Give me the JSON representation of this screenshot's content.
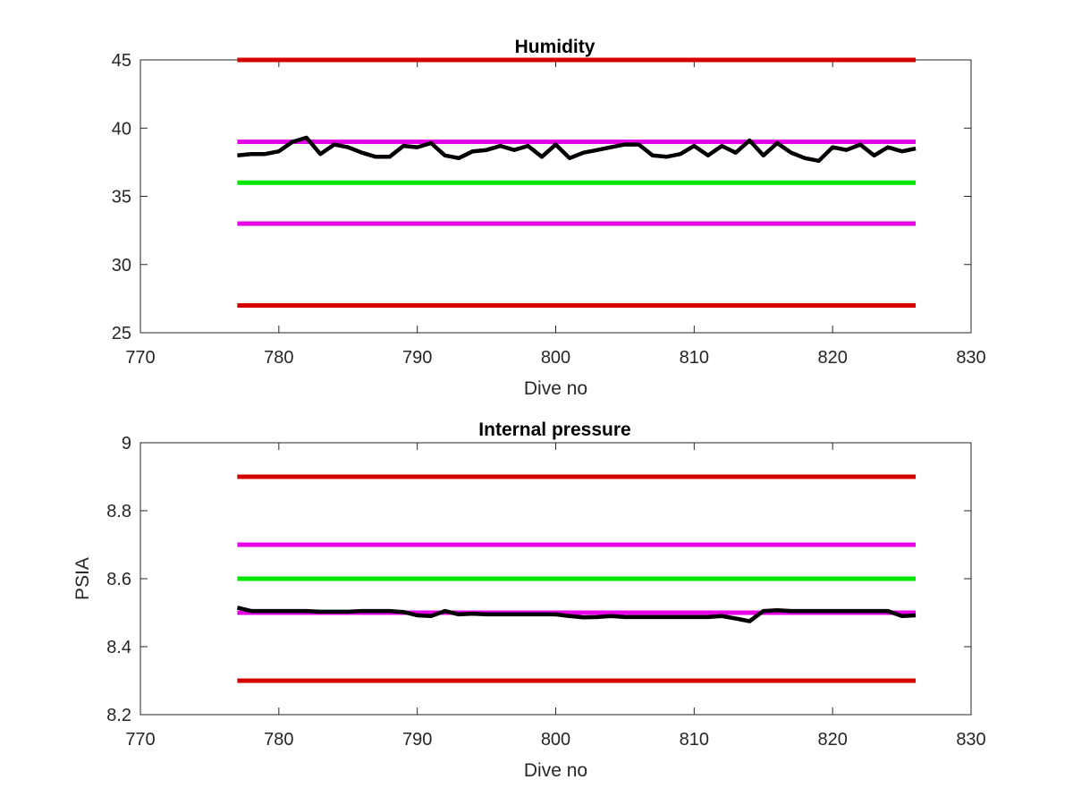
{
  "chart_data": [
    {
      "type": "line",
      "title": "Humidity",
      "xlabel": "Dive no",
      "ylabel": "",
      "xlim": [
        770,
        830
      ],
      "ylim": [
        25,
        45
      ],
      "xticks": [
        "770",
        "780",
        "790",
        "800",
        "810",
        "820",
        "830"
      ],
      "yticks": [
        "25",
        "30",
        "35",
        "40",
        "45"
      ],
      "grid": false,
      "colors": {
        "limit": "#d40000",
        "warn": "#e600e6",
        "target": "#00e600",
        "data": "#000000"
      },
      "limits": [
        {
          "role": "limit",
          "y": 45,
          "x": [
            777,
            826
          ]
        },
        {
          "role": "warn",
          "y": 39,
          "x": [
            777,
            826
          ]
        },
        {
          "role": "target",
          "y": 36,
          "x": [
            777,
            826
          ]
        },
        {
          "role": "warn",
          "y": 33,
          "x": [
            777,
            826
          ]
        },
        {
          "role": "limit",
          "y": 27,
          "x": [
            777,
            826
          ]
        }
      ],
      "series": [
        {
          "x": [
            777,
            778,
            779,
            780,
            781,
            782,
            783,
            784,
            785,
            786,
            787,
            788,
            789,
            790,
            791,
            792,
            793,
            794,
            795,
            796,
            797,
            798,
            799,
            800,
            801,
            802,
            803,
            804,
            805,
            806,
            807,
            808,
            809,
            810,
            811,
            812,
            813,
            814,
            815,
            816,
            817,
            818,
            819,
            820,
            821,
            822,
            823,
            824,
            825,
            826
          ],
          "values": [
            38.0,
            38.1,
            38.1,
            38.3,
            39.0,
            39.3,
            38.1,
            38.8,
            38.6,
            38.2,
            37.9,
            37.9,
            38.7,
            38.6,
            38.9,
            38.0,
            37.8,
            38.3,
            38.4,
            38.7,
            38.4,
            38.7,
            37.9,
            38.8,
            37.8,
            38.2,
            38.4,
            38.6,
            38.8,
            38.8,
            38.0,
            37.9,
            38.1,
            38.7,
            38.0,
            38.7,
            38.2,
            39.1,
            38.0,
            38.9,
            38.2,
            37.8,
            37.6,
            38.6,
            38.4,
            38.8,
            38.0,
            38.6,
            38.3,
            38.5
          ]
        }
      ]
    },
    {
      "type": "line",
      "title": "Internal pressure",
      "xlabel": "Dive no",
      "ylabel": "PSIA",
      "xlim": [
        770,
        830
      ],
      "ylim": [
        8.2,
        9.0
      ],
      "xticks": [
        "770",
        "780",
        "790",
        "800",
        "810",
        "820",
        "830"
      ],
      "yticks": [
        "8.2",
        "8.4",
        "8.6",
        "8.8",
        "9"
      ],
      "grid": false,
      "colors": {
        "limit": "#d40000",
        "warn": "#e600e6",
        "target": "#00e600",
        "data": "#000000"
      },
      "limits": [
        {
          "role": "limit",
          "y": 8.9,
          "x": [
            777,
            826
          ]
        },
        {
          "role": "warn",
          "y": 8.7,
          "x": [
            777,
            826
          ]
        },
        {
          "role": "target",
          "y": 8.6,
          "x": [
            777,
            826
          ]
        },
        {
          "role": "warn",
          "y": 8.5,
          "x": [
            777,
            826
          ]
        },
        {
          "role": "limit",
          "y": 8.3,
          "x": [
            777,
            826
          ]
        }
      ],
      "series": [
        {
          "x": [
            777,
            778,
            779,
            780,
            781,
            782,
            783,
            784,
            785,
            786,
            787,
            788,
            789,
            790,
            791,
            792,
            793,
            794,
            795,
            796,
            797,
            798,
            799,
            800,
            801,
            802,
            803,
            804,
            805,
            806,
            807,
            808,
            809,
            810,
            811,
            812,
            813,
            814,
            815,
            816,
            817,
            818,
            819,
            820,
            821,
            822,
            823,
            824,
            825,
            826
          ],
          "values": [
            8.515,
            8.505,
            8.505,
            8.505,
            8.505,
            8.505,
            8.503,
            8.503,
            8.503,
            8.505,
            8.505,
            8.505,
            8.502,
            8.492,
            8.49,
            8.505,
            8.495,
            8.497,
            8.495,
            8.495,
            8.495,
            8.495,
            8.495,
            8.495,
            8.49,
            8.486,
            8.487,
            8.49,
            8.487,
            8.487,
            8.487,
            8.487,
            8.487,
            8.487,
            8.487,
            8.49,
            8.483,
            8.475,
            8.505,
            8.507,
            8.505,
            8.505,
            8.505,
            8.505,
            8.505,
            8.505,
            8.505,
            8.505,
            8.49,
            8.492
          ]
        }
      ]
    }
  ]
}
